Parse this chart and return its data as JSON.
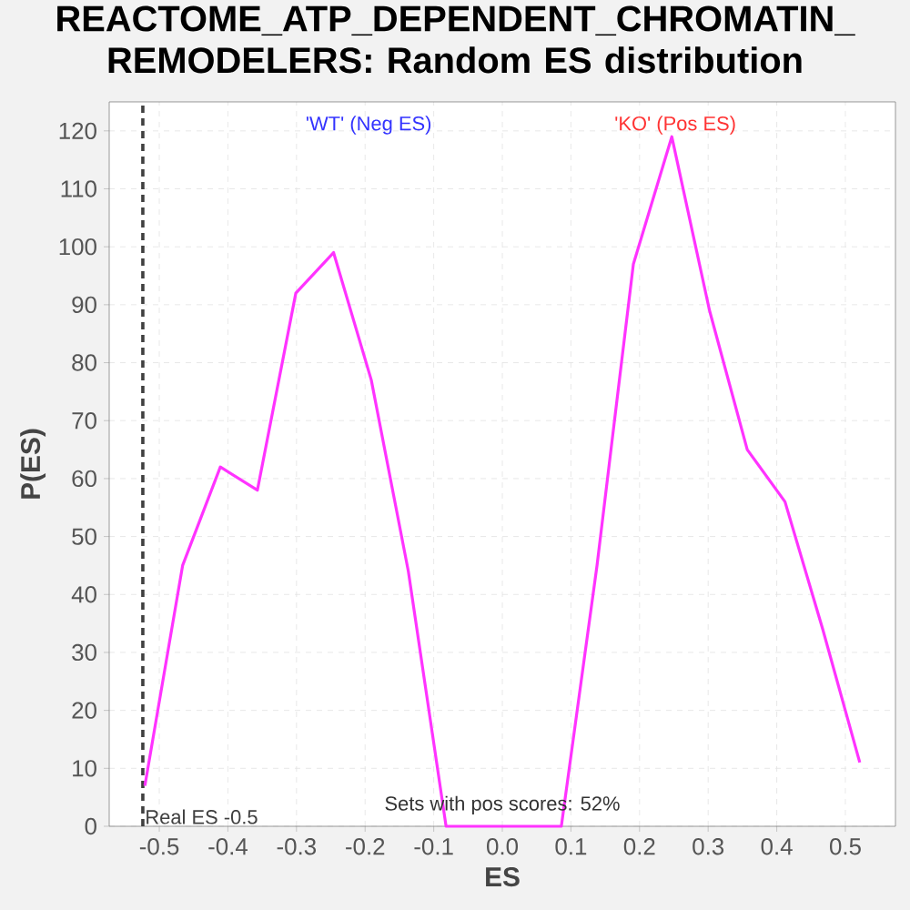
{
  "chart_data": {
    "type": "line",
    "title": "REACTOME_ATP_DEPENDENT_CHROMATIN_REMODELERS: Random ES distribution",
    "xlabel": "ES",
    "ylabel": "P(ES)",
    "x": [
      -0.521,
      -0.466,
      -0.411,
      -0.357,
      -0.301,
      -0.246,
      -0.191,
      -0.137,
      -0.082,
      0.086,
      0.138,
      0.191,
      0.247,
      0.302,
      0.357,
      0.412,
      0.467,
      0.521
    ],
    "series": [
      {
        "color": "#ff33ff",
        "values": [
          7,
          45,
          62,
          58,
          92,
          99,
          77,
          44,
          0,
          0,
          45,
          97,
          119,
          89,
          65,
          56,
          34,
          11
        ]
      }
    ],
    "xlim": [
      -0.573,
      0.573
    ],
    "ylim": [
      0,
      125
    ],
    "xticks": [
      -0.5,
      -0.4,
      -0.3,
      -0.2,
      -0.1,
      {
        "value": 0,
        "label": "0.0"
      },
      0.1,
      0.2,
      0.3,
      0.4,
      0.5
    ],
    "yticks": [
      0,
      10,
      20,
      30,
      40,
      50,
      60,
      70,
      80,
      90,
      100,
      110,
      120
    ],
    "grid": true,
    "ref_lines": [
      {
        "axis": "x",
        "value": -0.524,
        "label": "Real ES -0.5",
        "color": "#404040",
        "line_style": "dashed"
      }
    ],
    "annotations": [
      "'WT' (Neg ES)",
      "'KO' (Pos ES)",
      "Sets with pos scores: 52%"
    ]
  }
}
